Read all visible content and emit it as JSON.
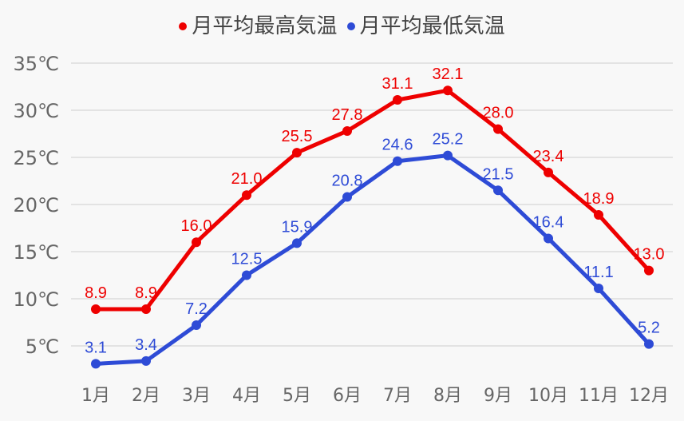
{
  "chart_data": {
    "type": "line",
    "title": "",
    "categories": [
      "1月",
      "2月",
      "3月",
      "4月",
      "5月",
      "6月",
      "7月",
      "8月",
      "9月",
      "10月",
      "11月",
      "12月"
    ],
    "series": [
      {
        "name": "月平均最高気温",
        "color": "#ee0000",
        "values": [
          8.9,
          8.9,
          16.0,
          21.0,
          25.5,
          27.8,
          31.1,
          32.1,
          28.0,
          23.4,
          18.9,
          13.0
        ]
      },
      {
        "name": "月平均最低気温",
        "color": "#2e4bd6",
        "values": [
          3.1,
          3.4,
          7.2,
          12.5,
          15.9,
          20.8,
          24.6,
          25.2,
          21.5,
          16.4,
          11.1,
          5.2
        ]
      }
    ],
    "xlabel": "",
    "ylabel": "",
    "yticks": [
      5,
      10,
      15,
      20,
      25,
      30,
      35
    ],
    "ytick_labels": [
      "5℃",
      "10℃",
      "15℃",
      "20℃",
      "25℃",
      "30℃",
      "35℃"
    ],
    "ylim": [
      0,
      35
    ],
    "grid": true,
    "legend_position": "top",
    "data_labels": true
  },
  "legend": {
    "items": [
      {
        "label": "月平均最高気温",
        "color": "#ee0000"
      },
      {
        "label": "月平均最低気温",
        "color": "#2e4bd6"
      }
    ]
  }
}
